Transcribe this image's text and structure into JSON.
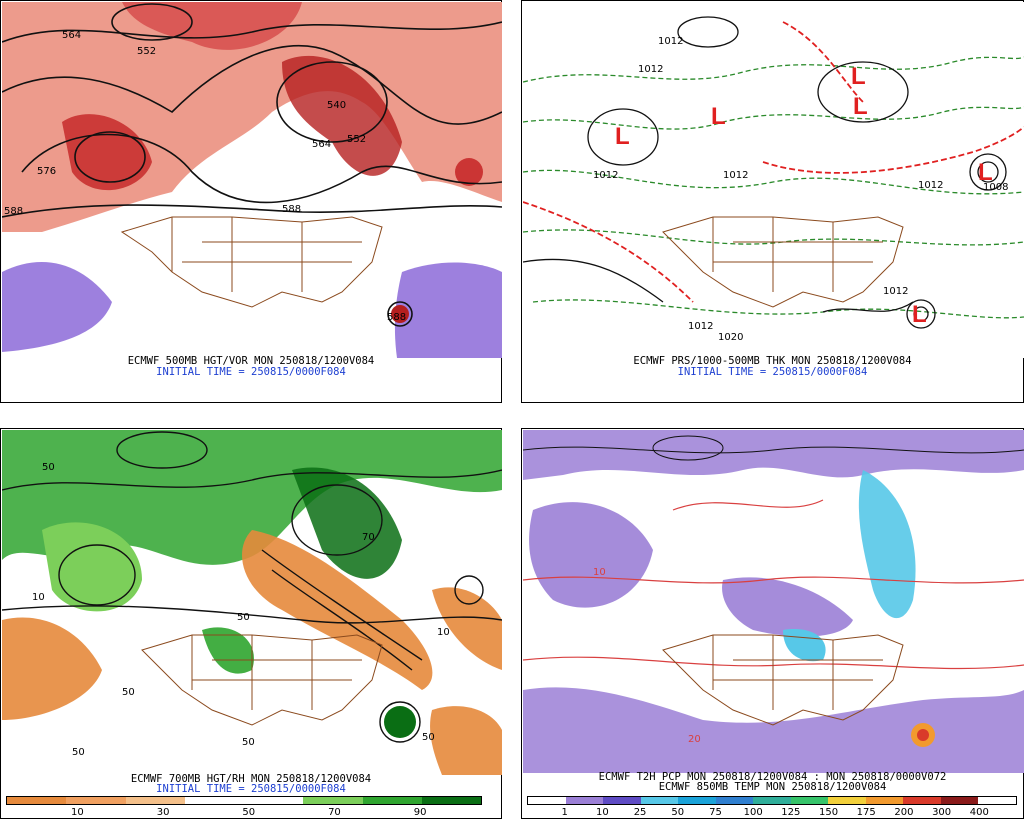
{
  "panels": [
    {
      "id": "p1",
      "caption": "ECMWF 500MB HGT/VOR MON 250818/1200V084",
      "init": "INITIAL TIME = 250815/0000F084"
    },
    {
      "id": "p2",
      "caption": "ECMWF PRS/1000-500MB THK MON 250818/1200V084",
      "init": "INITIAL TIME = 250815/0000F084"
    },
    {
      "id": "p3",
      "caption": "ECMWF 700MB HGT/RH MON 250818/1200V084",
      "init": "INITIAL TIME = 250815/0000F084"
    },
    {
      "id": "p4",
      "caption": "ECMWF T2H PCP MON 250818/1200V084 : MON 250818/0000V072",
      "init": "ECMWF 850MB TEMP MON 250818/1200V084"
    }
  ],
  "labels": {
    "p1": [
      "564",
      "552",
      "540",
      "552",
      "564",
      "576",
      "588",
      "588",
      "588"
    ],
    "p2": [
      "1012",
      "1012",
      "1012",
      "1012",
      "1012",
      "1012",
      "1012",
      "1020",
      "1008",
      "L",
      "L",
      "L",
      "L",
      "L",
      "L"
    ],
    "p3": [
      "50",
      "50",
      "50",
      "10",
      "10",
      "70",
      "50",
      "50",
      "50"
    ],
    "p4": [
      "10",
      "20"
    ]
  },
  "rh_legend": {
    "ticks": [
      "10",
      "30",
      "50",
      "70",
      "90"
    ],
    "colors": [
      "#e68a3c",
      "#f0a060",
      "#f4c08a",
      "#ffffff",
      "#ffffff",
      "#7ccf5a",
      "#2fa52f",
      "#0a6e14"
    ]
  },
  "pcp_legend": {
    "ticks": [
      "1",
      "10",
      "25",
      "50",
      "75",
      "100",
      "125",
      "150",
      "175",
      "200",
      "300",
      "400"
    ],
    "colors": [
      "#ffffff",
      "#9b7fd6",
      "#5e4bc4",
      "#57c8e8",
      "#1aa3d9",
      "#2f7fd0",
      "#2fae9a",
      "#36c46a",
      "#f2d03b",
      "#f29a2e",
      "#d93a2a",
      "#8a1a1a",
      "#ffffff"
    ]
  }
}
